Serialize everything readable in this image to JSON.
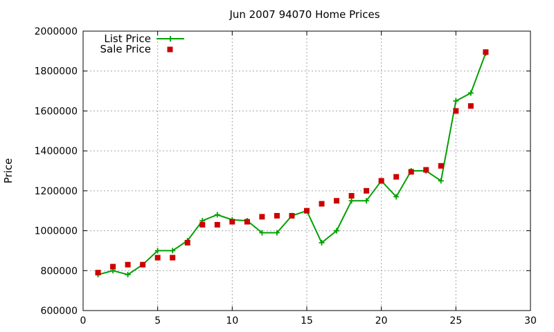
{
  "chart_data": {
    "type": "line",
    "title": "Jun 2007 94070 Home Prices",
    "xlabel": "",
    "ylabel": "Price",
    "xlim": [
      0,
      30
    ],
    "ylim": [
      600000,
      2000000
    ],
    "xticks": [
      0,
      5,
      10,
      15,
      20,
      25,
      30
    ],
    "yticks": [
      600000,
      800000,
      1000000,
      1200000,
      1400000,
      1600000,
      1800000,
      2000000
    ],
    "grid": true,
    "legend_position": "top-left",
    "series": [
      {
        "name": "List Price",
        "style": "line-with-plus-markers",
        "color": "#00a000",
        "x": [
          1,
          2,
          3,
          4,
          5,
          6,
          7,
          8,
          9,
          10,
          11,
          12,
          13,
          14,
          15,
          16,
          17,
          18,
          19,
          20,
          21,
          22,
          23,
          24,
          25,
          26,
          27
        ],
        "values": [
          780000,
          800000,
          780000,
          830000,
          900000,
          900000,
          950000,
          1050000,
          1080000,
          1055000,
          1050000,
          990000,
          990000,
          1075000,
          1100000,
          940000,
          1000000,
          1150000,
          1150000,
          1250000,
          1170000,
          1300000,
          1300000,
          1250000,
          1650000,
          1690000,
          1890000
        ]
      },
      {
        "name": "Sale Price",
        "style": "square-markers",
        "color": "#cc0000",
        "x": [
          1,
          2,
          3,
          4,
          5,
          6,
          7,
          8,
          9,
          10,
          11,
          12,
          13,
          14,
          15,
          16,
          17,
          18,
          19,
          20,
          21,
          22,
          23,
          24,
          25,
          26,
          27
        ],
        "values": [
          790000,
          820000,
          830000,
          830000,
          865000,
          865000,
          940000,
          1030000,
          1030000,
          1045000,
          1045000,
          1070000,
          1075000,
          1075000,
          1100000,
          1135000,
          1150000,
          1175000,
          1200000,
          1250000,
          1270000,
          1295000,
          1305000,
          1325000,
          1600000,
          1625000,
          1895000
        ]
      }
    ]
  }
}
